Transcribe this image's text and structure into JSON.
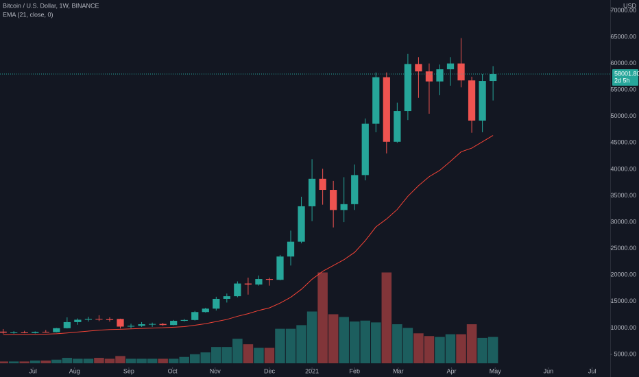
{
  "chart_data": {
    "type": "candlestick",
    "title": "Bitcoin / U.S. Dollar, 1W, BINANCE",
    "currency": "USD",
    "open": [
      9300,
      9100,
      9150,
      9050,
      9250,
      9200,
      9950,
      11100,
      11550,
      11700,
      11650,
      11700,
      10250,
      10400,
      10700,
      10750,
      10550,
      11350,
      11500,
      13000,
      13650,
      15500,
      16000,
      18400,
      18200,
      19250,
      19100,
      23500,
      26300,
      33000,
      38200,
      36100,
      32300,
      33400,
      38900,
      48600,
      57400,
      45200,
      51000,
      59900,
      58500,
      56600,
      58900,
      60000,
      56800,
      49200,
      56700
    ],
    "high": [
      9800,
      9400,
      9450,
      9350,
      9600,
      10000,
      12000,
      11800,
      12100,
      12400,
      12000,
      11750,
      10800,
      11100,
      11000,
      10950,
      11500,
      11700,
      13200,
      13800,
      15900,
      16500,
      18800,
      19500,
      19900,
      19500,
      23800,
      28400,
      34800,
      41900,
      40100,
      37800,
      38500,
      40900,
      49600,
      58300,
      58300,
      52600,
      61800,
      61200,
      60000,
      59800,
      61200,
      64800,
      57500,
      58000,
      59500
    ],
    "low": [
      8900,
      8900,
      9000,
      8950,
      9100,
      9150,
      9900,
      10600,
      11200,
      11300,
      11200,
      9900,
      9900,
      10200,
      10200,
      10400,
      10500,
      11200,
      11400,
      12900,
      13300,
      14800,
      15800,
      16300,
      18000,
      18000,
      19000,
      21800,
      26000,
      30200,
      33300,
      29000,
      30000,
      32300,
      37900,
      47000,
      43000,
      45000,
      49300,
      53500,
      50500,
      54000,
      55800,
      55500,
      46900,
      47000,
      53000
    ],
    "close": [
      9100,
      9150,
      9050,
      9250,
      9200,
      9950,
      11100,
      11550,
      11700,
      11650,
      11500,
      10250,
      10400,
      10700,
      10750,
      10550,
      11350,
      11500,
      13000,
      13650,
      15500,
      16000,
      18400,
      18200,
      19250,
      19100,
      23500,
      26300,
      33000,
      38200,
      36100,
      32300,
      33400,
      38900,
      48600,
      57400,
      45200,
      51000,
      59900,
      58500,
      56600,
      58900,
      60000,
      56800,
      49200,
      56700,
      58000
    ],
    "volume": [
      2,
      2,
      2,
      3,
      3,
      4,
      6,
      5,
      5,
      6,
      5,
      8,
      5,
      5,
      5,
      5,
      5,
      7,
      10,
      12,
      18,
      18,
      27,
      21,
      17,
      17,
      38,
      38,
      42,
      57,
      100,
      54,
      51,
      46,
      47,
      45,
      100,
      43,
      39,
      33,
      30,
      29,
      32,
      32,
      43,
      28,
      29
    ],
    "volume_ylim": [
      0,
      400
    ],
    "indicator": {
      "name": "EMA (21, close, 0)",
      "color": "#f44336",
      "values": [
        8700,
        8720,
        8750,
        8780,
        8820,
        8900,
        9050,
        9230,
        9400,
        9560,
        9700,
        9750,
        9820,
        9900,
        9980,
        10030,
        10130,
        10250,
        10500,
        10800,
        11200,
        11600,
        12200,
        12700,
        13300,
        13800,
        14700,
        15800,
        17300,
        19200,
        20700,
        21800,
        22900,
        24300,
        26500,
        29100,
        30600,
        32400,
        34900,
        36900,
        38600,
        39800,
        41500,
        43300,
        44000,
        45200,
        46400
      ]
    },
    "up_color": "#26a69a",
    "down_color": "#ef5350",
    "last_price": {
      "value": 58001.8,
      "label": "58001.80"
    },
    "countdown": "2d 5h",
    "xlim": [
      -0.3,
      57
    ],
    "xticks": [
      {
        "value": 2.8,
        "label": "Jul"
      },
      {
        "value": 6.7,
        "label": "Aug"
      },
      {
        "value": 11.8,
        "label": "Sep"
      },
      {
        "value": 15.9,
        "label": "Oct"
      },
      {
        "value": 19.9,
        "label": "Nov"
      },
      {
        "value": 25,
        "label": "Dec"
      },
      {
        "value": 29,
        "label": "2021"
      },
      {
        "value": 33,
        "label": "Feb"
      },
      {
        "value": 37.1,
        "label": "Mar"
      },
      {
        "value": 42.1,
        "label": "Apr"
      },
      {
        "value": 46.2,
        "label": "May"
      },
      {
        "value": 51.2,
        "label": "Jun"
      },
      {
        "value": 55.3,
        "label": "Jul"
      }
    ],
    "ylim": [
      723,
      72000
    ],
    "yticks": [
      {
        "value": 5000,
        "label": "5000.00"
      },
      {
        "value": 10000,
        "label": "10000.00"
      },
      {
        "value": 15000,
        "label": "15000.00"
      },
      {
        "value": 20000,
        "label": "20000.00"
      },
      {
        "value": 25000,
        "label": "25000.00"
      },
      {
        "value": 30000,
        "label": "30000.00"
      },
      {
        "value": 35000,
        "label": "35000.00"
      },
      {
        "value": 40000,
        "label": "40000.00"
      },
      {
        "value": 45000,
        "label": "45000.00"
      },
      {
        "value": 50000,
        "label": "50000.00"
      },
      {
        "value": 55000,
        "label": "55000.00"
      },
      {
        "value": 60000,
        "label": "60000.00"
      },
      {
        "value": 65000,
        "label": "65000.00"
      },
      {
        "value": 70000,
        "label": "70000.00"
      }
    ]
  }
}
